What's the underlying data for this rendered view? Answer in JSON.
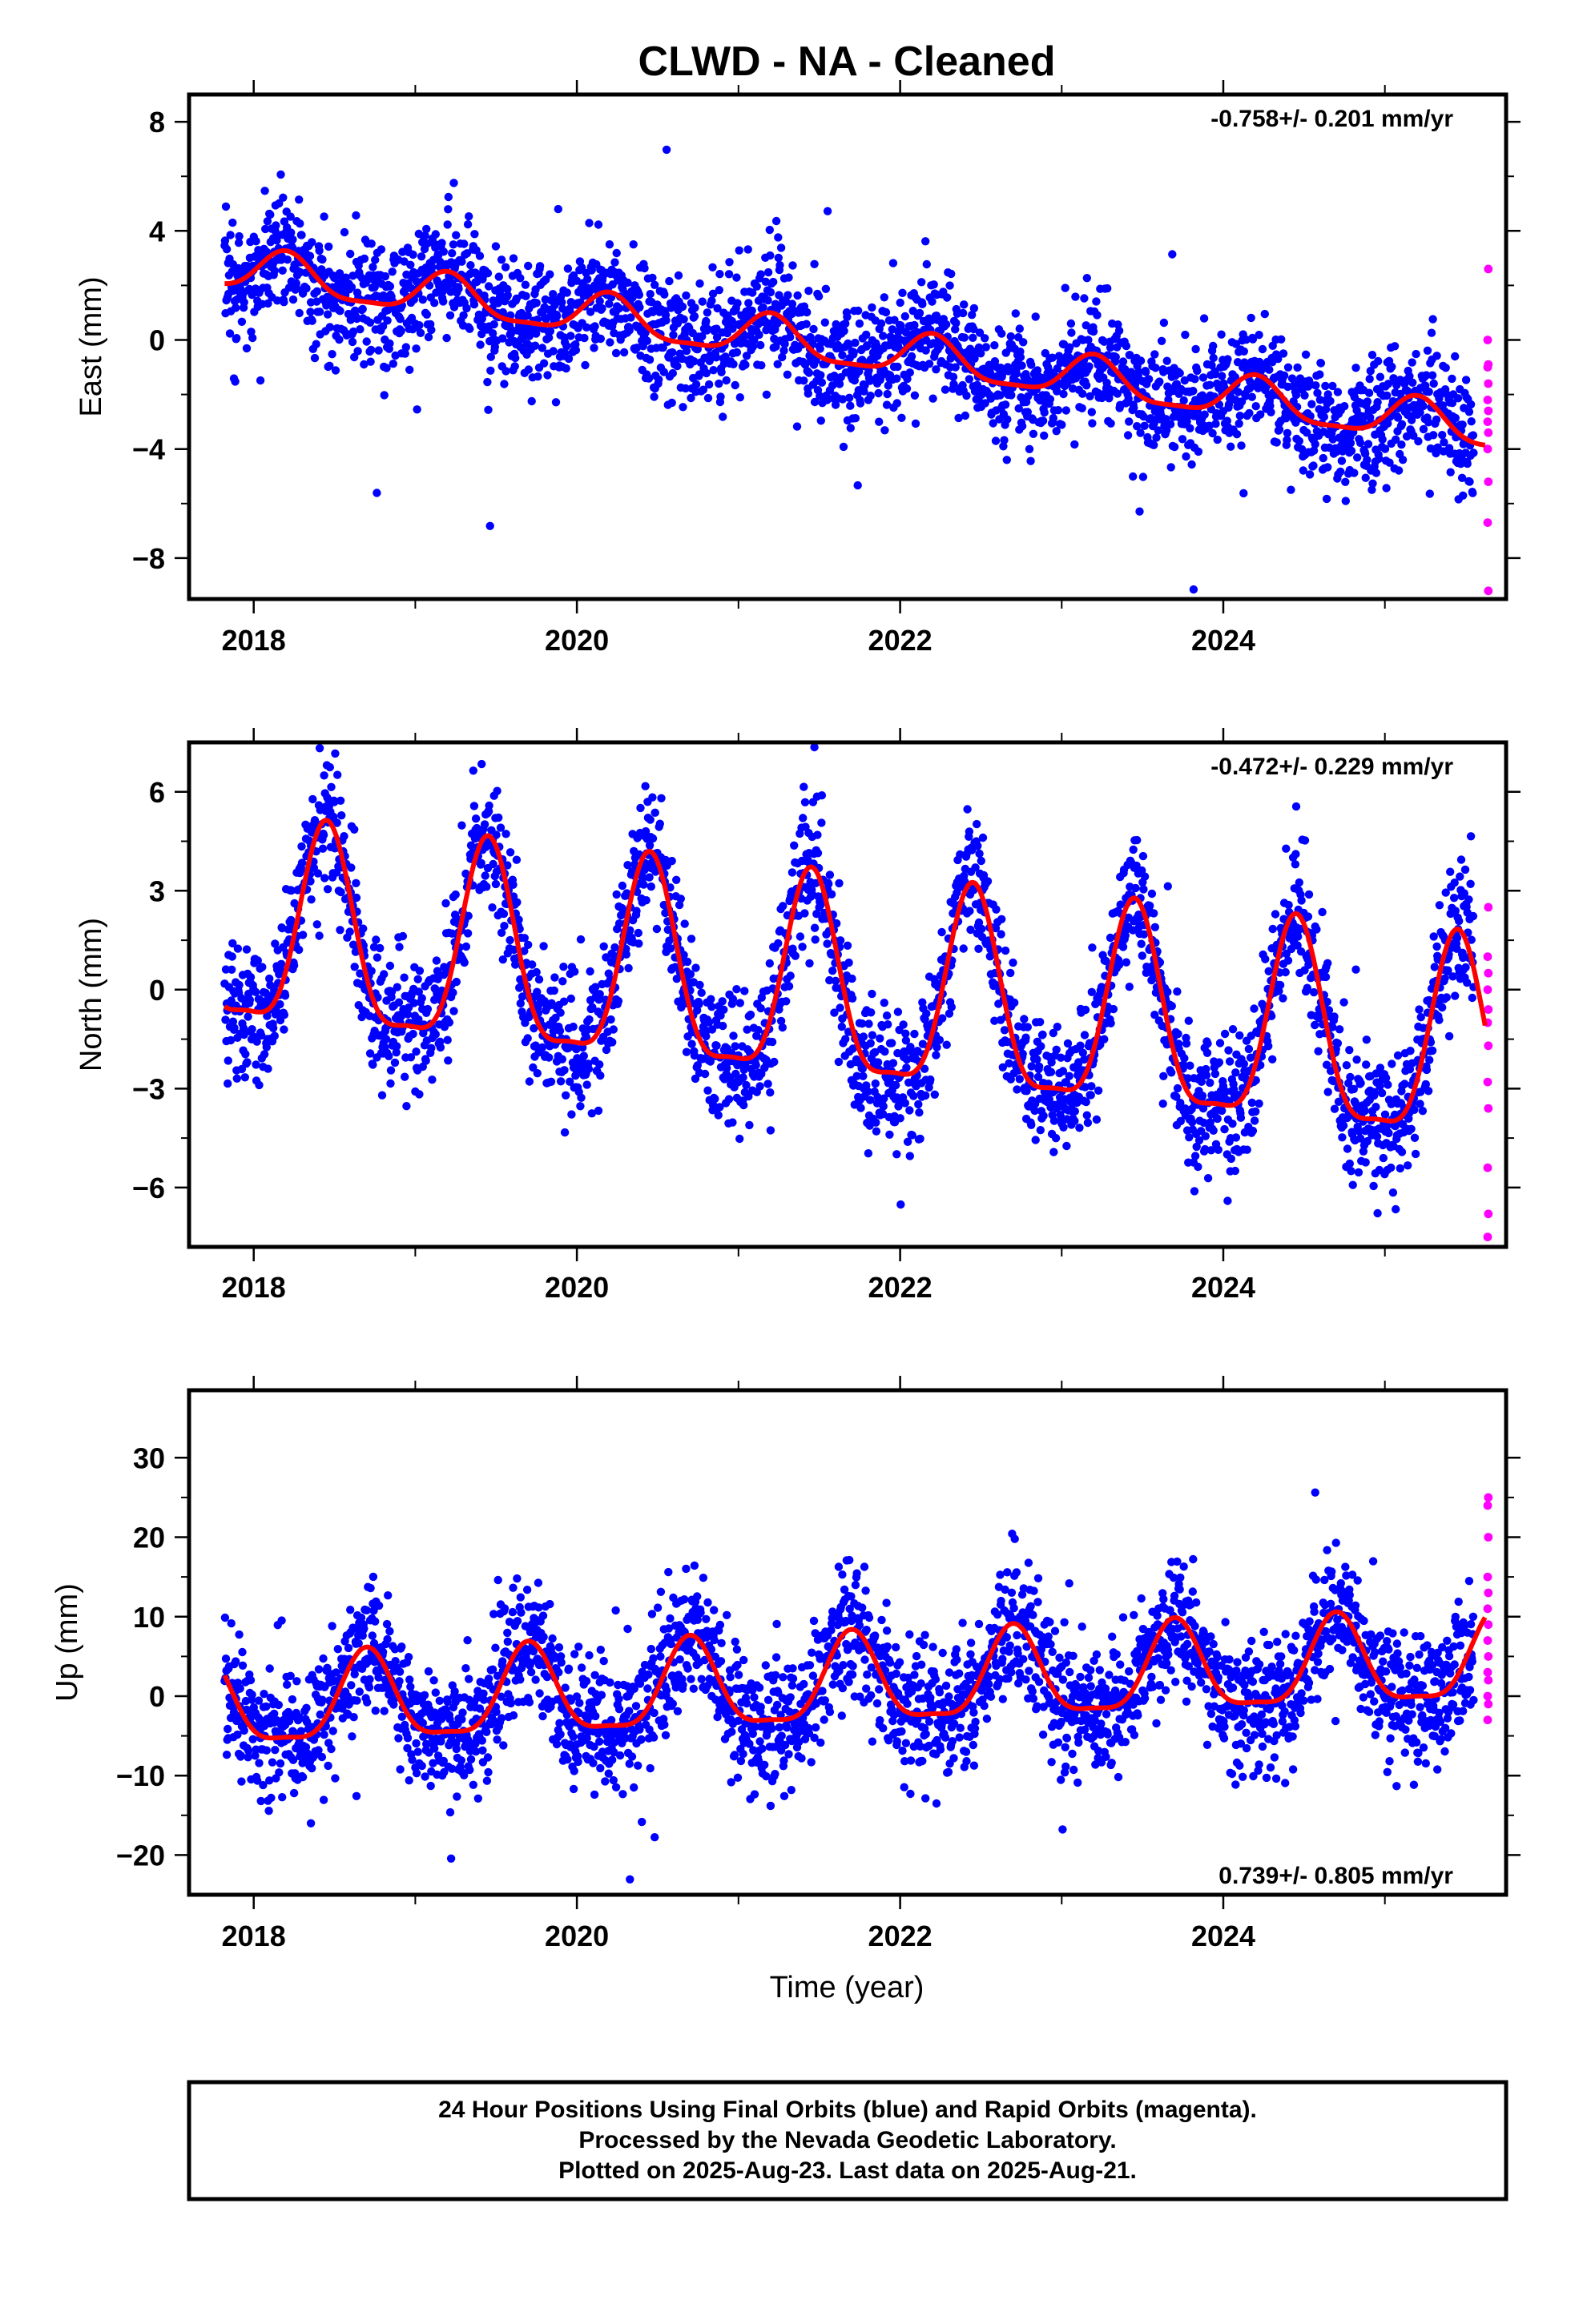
{
  "chart_data": {
    "title": "CLWD  - NA - Cleaned",
    "type": "scatter",
    "xlabel": "Time (year)",
    "xlim": [
      2017.6,
      2025.75
    ],
    "xticks": [
      2018,
      2020,
      2022,
      2024
    ],
    "xtick_labels": [
      "2018",
      "2020",
      "2022",
      "2024"
    ],
    "grid": false,
    "series_colors": {
      "final": "#0000ff",
      "rapid": "#ff00ff",
      "model": "#ff0000"
    },
    "panels": [
      {
        "ylabel": "East (mm)",
        "ylim": [
          -9.5,
          9
        ],
        "yticks": [
          8,
          4,
          0,
          -4,
          -8
        ],
        "ytick_labels": [
          "8",
          "4",
          "0",
          "−4",
          "−8"
        ],
        "rate_label": "-0.758+/- 0.201 mm/yr",
        "rate_position": "top-right",
        "trend_mm_per_yr": -0.758,
        "start_year": 2017.82,
        "end_year": 2025.55,
        "offset": 2.6,
        "annual_amp": 0.75,
        "annual_phase_year": 2018.2,
        "noise_sd": 1.1,
        "outlier_rate": 0.01,
        "rapid_values": [
          2.6,
          0.0,
          -0.9,
          -1.0,
          -1.6,
          -2.2,
          -2.6,
          -3.0,
          -3.4,
          -4.0,
          -5.2,
          -6.7,
          -9.2
        ],
        "seed": 101
      },
      {
        "ylabel": "North (mm)",
        "ylim": [
          -7.8,
          7.5
        ],
        "yticks": [
          6,
          3,
          0,
          -3,
          -6
        ],
        "ytick_labels": [
          "6",
          "3",
          "0",
          "−3",
          "−6"
        ],
        "rate_label": "-0.472+/- 0.229 mm/yr",
        "rate_position": "top-right",
        "trend_mm_per_yr": -0.472,
        "start_year": 2017.82,
        "end_year": 2025.55,
        "offset": 1.6,
        "annual_amp": 3.0,
        "annual_phase_year": 2018.45,
        "noise_sd": 1.0,
        "outlier_rate": 0.01,
        "rapid_values": [
          2.5,
          1.0,
          0.5,
          0.0,
          -0.6,
          -1.0,
          -1.7,
          -2.8,
          -3.6,
          -5.4,
          -6.8,
          -7.5
        ],
        "seed": 202
      },
      {
        "ylabel": "Up (mm)",
        "ylim": [
          -25,
          38.5
        ],
        "yticks": [
          30,
          20,
          10,
          0,
          -10,
          -20
        ],
        "ytick_labels": [
          "30",
          "20",
          "10",
          "0",
          "−10",
          "−20"
        ],
        "rate_label": "0.739+/- 0.805 mm/yr",
        "rate_position": "bottom-right",
        "trend_mm_per_yr": 0.739,
        "start_year": 2017.82,
        "end_year": 2025.55,
        "offset": -1.5,
        "annual_amp": 5.5,
        "annual_phase_year": 2017.7,
        "noise_sd": 4.2,
        "outlier_rate": 0.012,
        "rapid_values": [
          25.0,
          24.0,
          20.0,
          15.0,
          13.0,
          11.0,
          9.0,
          7.0,
          5.0,
          3.0,
          2.0,
          0.0,
          -1.0,
          -3.0
        ],
        "seed": 303
      }
    ],
    "notes": [
      "24 Hour Positions Using Final Orbits (blue) and Rapid Orbits (magenta).",
      "Processed by the Nevada Geodetic Laboratory.",
      "Plotted on 2025-Aug-23. Last data on 2025-Aug-21."
    ]
  }
}
